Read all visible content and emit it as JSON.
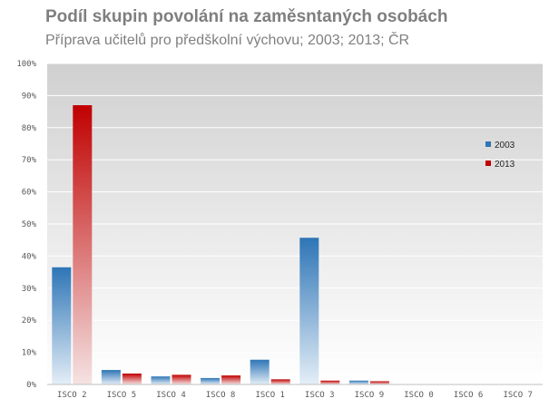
{
  "chart_data": {
    "type": "bar",
    "title": "Podíl skupin povolání na zaměsntaných osobách",
    "subtitle": "Příprava učitelů pro předškolní výchovu; 2003; 2013; ČR",
    "xlabel": "",
    "ylabel": "",
    "ylim": [
      0,
      100
    ],
    "yticks": [
      "0%",
      "10%",
      "20%",
      "30%",
      "40%",
      "50%",
      "60%",
      "70%",
      "80%",
      "90%",
      "100%"
    ],
    "grid": true,
    "legend_position": "right",
    "categories": [
      "ISCO 2",
      "ISCO 5",
      "ISCO 4",
      "ISCO 8",
      "ISCO 1",
      "ISCO 3",
      "ISCO 9",
      "ISCO 0",
      "ISCO 6",
      "ISCO 7"
    ],
    "series": [
      {
        "name": "2003",
        "color": "#2e75b6",
        "values": [
          36.5,
          4.5,
          2.5,
          2.0,
          7.7,
          45.7,
          1.2,
          0,
          0,
          0
        ]
      },
      {
        "name": "2013",
        "color": "#c00000",
        "values": [
          87.0,
          3.4,
          3.0,
          2.8,
          1.6,
          1.2,
          1.0,
          0,
          0,
          0
        ]
      }
    ]
  }
}
